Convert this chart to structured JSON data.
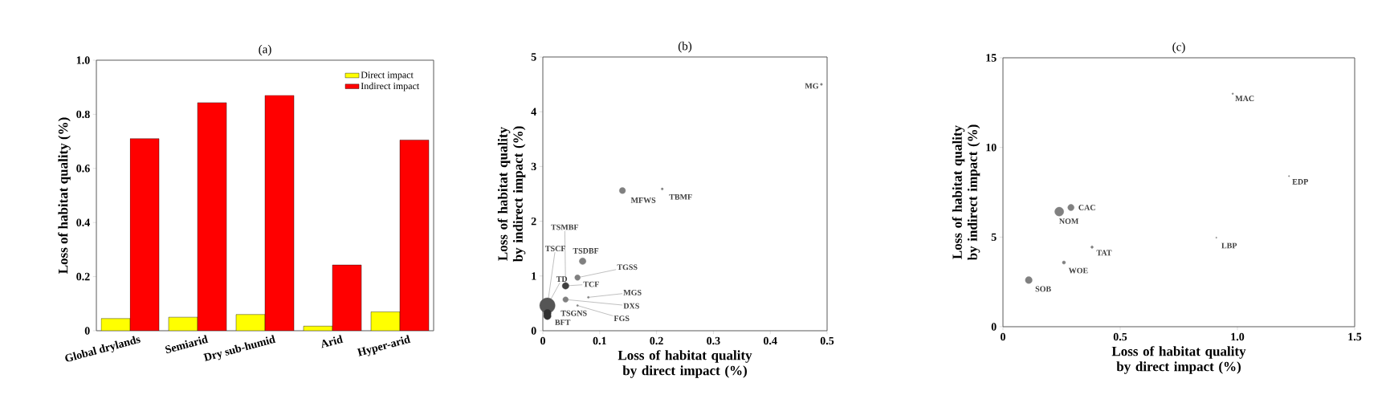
{
  "chart_data": [
    {
      "type": "bar",
      "title": "(a)",
      "ylabel": "Loss of habitat quality (%)",
      "categories": [
        "Global drylands",
        "Semiarid",
        "Dry sub-humid",
        "Arid",
        "Hyper-arid"
      ],
      "series": [
        {
          "name": "Direct impact",
          "color": "#ffff00",
          "values": [
            0.045,
            0.05,
            0.06,
            0.017,
            0.07
          ]
        },
        {
          "name": "Indirect impact",
          "color": "#ff0000",
          "values": [
            0.71,
            0.843,
            0.87,
            0.243,
            0.705
          ]
        }
      ],
      "ylim": [
        0,
        1
      ],
      "yticks": [
        0,
        0.2,
        0.4,
        0.6,
        0.8,
        {
          "value": 1,
          "label": "1.0"
        }
      ],
      "legend": "top right"
    },
    {
      "type": "bubble",
      "title": "(b)",
      "xlabel": "Loss of habitat quality by direct impact (%)",
      "ylabel": "Loss of habitat quality by indirect impact (%)",
      "x": [
        0.49,
        0.14,
        0.21,
        0.07,
        0.061,
        0.04,
        0.08,
        0.04,
        0.061,
        0.008,
        0.008,
        0.008
      ],
      "values": [
        4.5,
        2.56,
        2.59,
        1.27,
        0.97,
        0.82,
        0.61,
        0.57,
        0.46,
        0.46,
        0.32,
        0.27
      ],
      "sizes": [
        0.02,
        0.16,
        0.02,
        0.19,
        0.13,
        0.19,
        0.015,
        0.13,
        0.015,
        1,
        0.23,
        0.23
      ],
      "colors": [
        "#808080",
        "#808080",
        "#808080",
        "#808080",
        "#808080",
        "#404040",
        "#808080",
        "#808080",
        "#808080",
        "#555555",
        "#303030",
        "#303030"
      ],
      "xlim": [
        0,
        0.5
      ],
      "ylim": [
        0,
        5
      ],
      "xticks": [
        0,
        0.1,
        0.2,
        0.3,
        0.4,
        0.5
      ],
      "yticks": [
        0,
        1,
        2,
        3,
        4,
        5
      ],
      "annotations": [
        {
          "text": "MG",
          "x": 0.49,
          "y": 4.5
        },
        {
          "text": "MFWS",
          "x": 0.14,
          "y": 2.56
        },
        {
          "text": "TBMF",
          "x": 0.21,
          "y": 2.59
        },
        {
          "text": "TSMBF",
          "x": 0.04,
          "y": 0.82
        },
        {
          "text": "TSCF",
          "x": 0.008,
          "y": 0.46
        },
        {
          "text": "TSDBF",
          "x": 0.07,
          "y": 1.27
        },
        {
          "text": "TGSS",
          "x": 0.061,
          "y": 0.97
        },
        {
          "text": "TD",
          "x": 0.008,
          "y": 0.46
        },
        {
          "text": "TCF",
          "x": 0.04,
          "y": 0.82
        },
        {
          "text": "MGS",
          "x": 0.08,
          "y": 0.61
        },
        {
          "text": "DXS",
          "x": 0.04,
          "y": 0.57
        },
        {
          "text": "TSGNS",
          "x": 0.008,
          "y": 0.32
        },
        {
          "text": "FGS",
          "x": 0.061,
          "y": 0.46
        },
        {
          "text": "BFT",
          "x": 0.008,
          "y": 0.27
        }
      ]
    },
    {
      "type": "bubble",
      "title": "(c)",
      "xlabel": "Loss of habitat quality by direct impact (%)",
      "ylabel": "Loss of habitat quality by indirect impact (%)",
      "x": [
        0.98,
        1.22,
        0.29,
        0.24,
        0.91,
        0.38,
        0.26,
        0.11
      ],
      "values": [
        13.0,
        8.4,
        6.65,
        6.42,
        4.97,
        4.44,
        3.58,
        2.6
      ],
      "sizes": [
        0.03,
        0.02,
        0.5,
        1,
        0.02,
        0.08,
        0.13,
        0.6
      ],
      "colors": [
        "#808080",
        "#808080",
        "#808080",
        "#808080",
        "#808080",
        "#808080",
        "#808080",
        "#808080"
      ],
      "xlim": [
        0,
        1.5
      ],
      "ylim": [
        0,
        15
      ],
      "xticks": [
        0,
        0.5,
        {
          "value": 1,
          "label": "1.0"
        },
        1.5
      ],
      "yticks": [
        0,
        5,
        10,
        15
      ],
      "annotations": [
        {
          "text": "MAC",
          "x": 0.98,
          "y": 13.0
        },
        {
          "text": "EDP",
          "x": 1.22,
          "y": 8.4
        },
        {
          "text": "CAC",
          "x": 0.29,
          "y": 6.65
        },
        {
          "text": "NOM",
          "x": 0.24,
          "y": 6.42
        },
        {
          "text": "LBP",
          "x": 0.91,
          "y": 4.97
        },
        {
          "text": "TAT",
          "x": 0.38,
          "y": 4.44
        },
        {
          "text": "WOE",
          "x": 0.26,
          "y": 3.58
        },
        {
          "text": "SOB",
          "x": 0.11,
          "y": 2.6
        }
      ]
    }
  ]
}
